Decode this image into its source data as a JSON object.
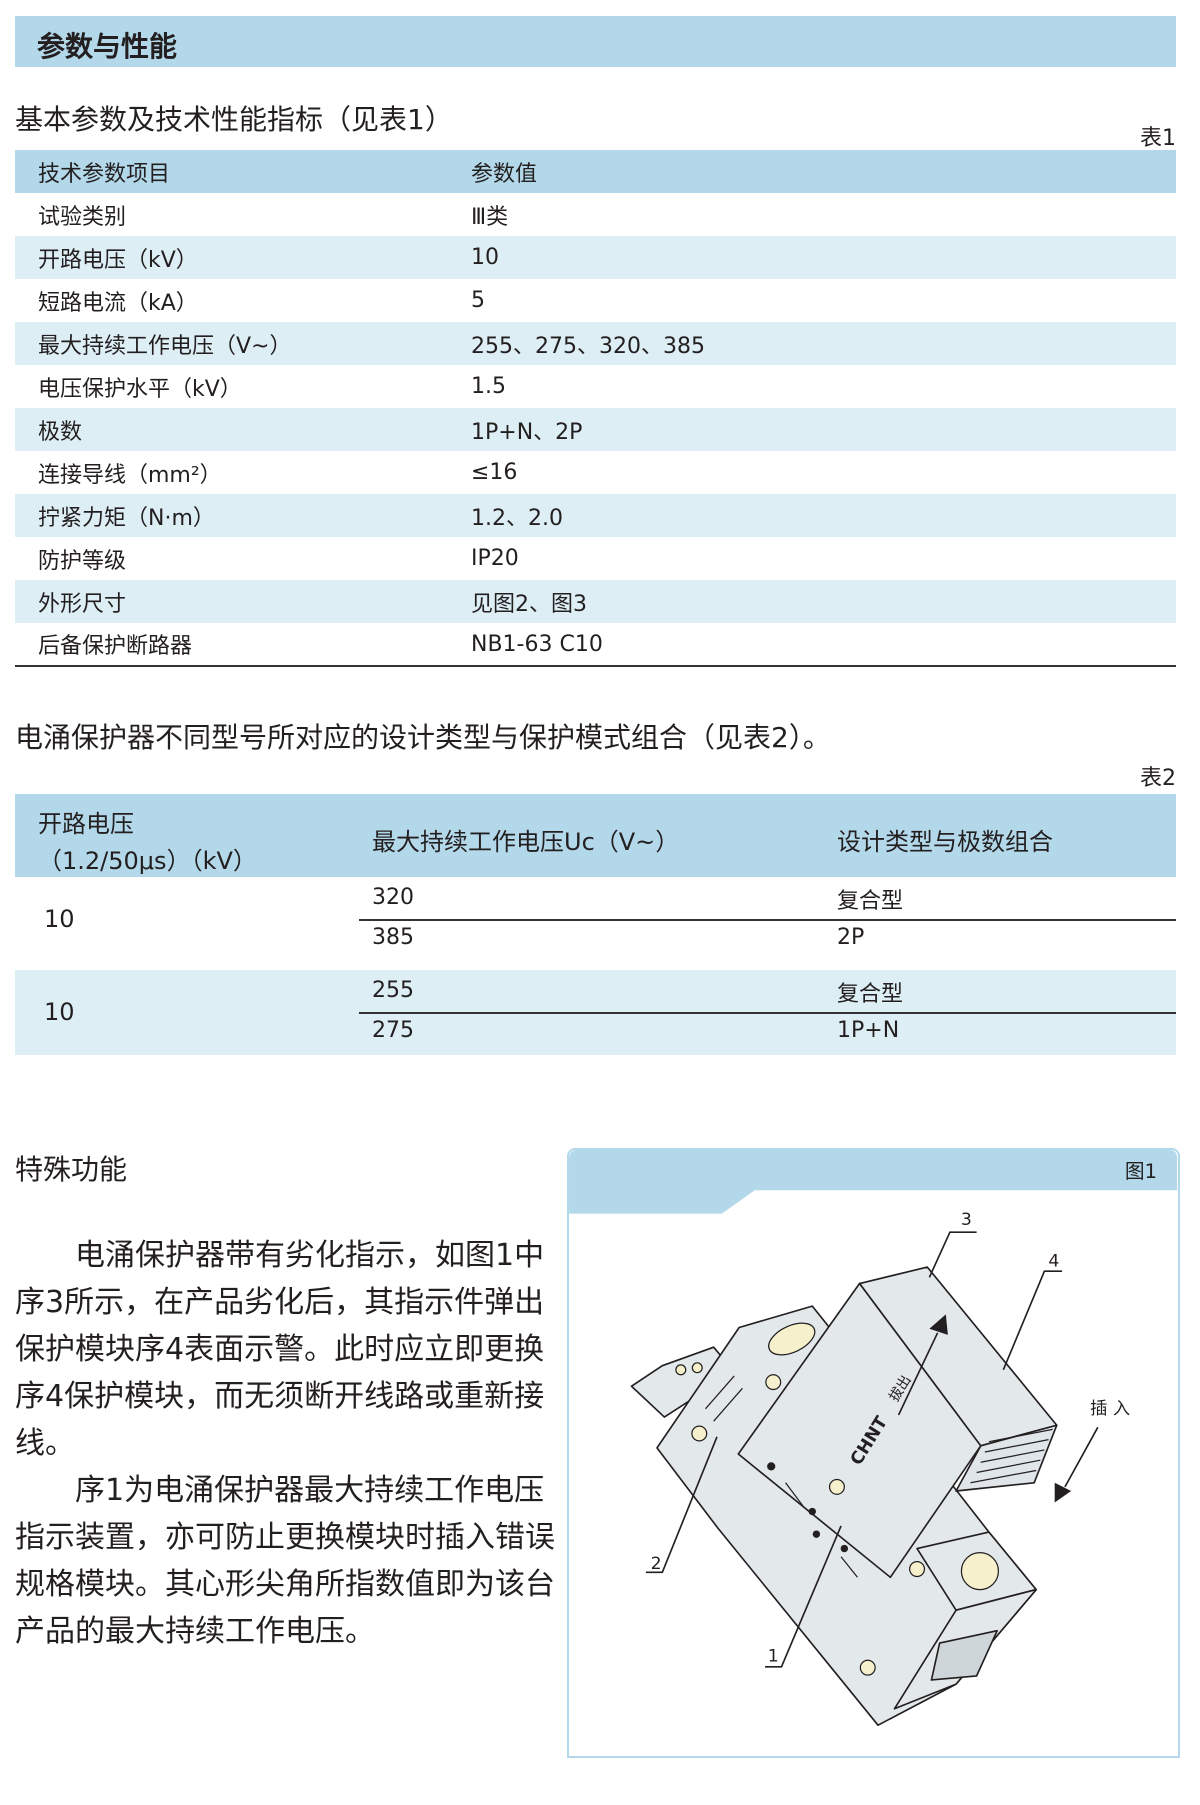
{
  "section_title": "参数与性能",
  "table1": {
    "heading": "基本参数及技术性能指标（见表1）",
    "tag": "表1",
    "columns": [
      "技术参数项目",
      "参数值"
    ],
    "rows": [
      [
        "试验类别",
        "Ⅲ类"
      ],
      [
        "开路电压（kV）",
        "10"
      ],
      [
        "短路电流（kA）",
        "5"
      ],
      [
        "最大持续工作电压（V~）",
        "255、275、320、385"
      ],
      [
        "电压保护水平（kV）",
        "1.5"
      ],
      [
        "极数",
        "1P+N、2P"
      ],
      [
        "连接导线（mm²）",
        "≤16"
      ],
      [
        "拧紧力矩（N·m）",
        "1.2、2.0"
      ],
      [
        "防护等级",
        "IP20"
      ],
      [
        "外形尺寸",
        "见图2、图3"
      ],
      [
        "后备保护断路器",
        "NB1-63 C10"
      ]
    ]
  },
  "table2": {
    "heading": "电涌保护器不同型号所对应的设计类型与保护模式组合（见表2）。",
    "tag": "表2",
    "columns": [
      "开路电压",
      "（1.2/50μs）（kV）",
      "最大持续工作电压Uc（V~）",
      "设计类型与极数组合"
    ],
    "groups": [
      {
        "voltage": "10",
        "rows": [
          [
            "320",
            "复合型"
          ],
          [
            "385",
            "2P"
          ]
        ]
      },
      {
        "voltage": "10",
        "rows": [
          [
            "255",
            "复合型"
          ],
          [
            "275",
            "1P+N"
          ]
        ]
      }
    ]
  },
  "special": {
    "heading": "特殊功能",
    "paragraphs": [
      "电涌保护器带有劣化指示，如图1中序3所示，在产品劣化后，其指示件弹出保护模块序4表面示警。此时应立即更换序4保护模块，而无须断开线路或重新接线。",
      "序1为电涌保护器最大持续工作电压指示装置，亦可防止更换模块时插入错误规格模块。其心形尖角所指数值即为该台产品的最大持续工作电压。"
    ]
  },
  "figure": {
    "tag": "图1",
    "callouts": [
      "1",
      "2",
      "3",
      "4"
    ],
    "insert_label": "插 入",
    "pull_label": "拔出",
    "brand": "CHNT"
  },
  "colors": {
    "header_blue": "#b3d8ea",
    "row_stripe": "#ddeef5",
    "device_gray": "#e3e8ea",
    "screw_yellow": "#f6f1cc"
  }
}
